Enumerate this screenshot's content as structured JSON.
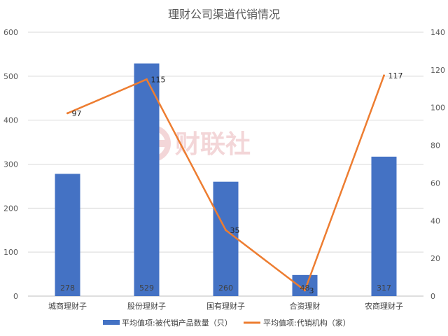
{
  "chart_data": {
    "type": "bar",
    "title": "理财公司渠道代销情况",
    "categories": [
      "城商理财子",
      "股份理财子",
      "国有理财子",
      "合资理财",
      "农商理财子"
    ],
    "series": [
      {
        "name": "平均值项:被代销产品数量（只）",
        "type": "bar",
        "axis": "left",
        "color": "#4472C4",
        "values": [
          278,
          529,
          260,
          48,
          317
        ]
      },
      {
        "name": "平均值项:代销机构（家）",
        "type": "line",
        "axis": "right",
        "color": "#ED7D31",
        "values": [
          97,
          115,
          35,
          3,
          117
        ]
      }
    ],
    "y_left": {
      "range": [
        0,
        600
      ],
      "ticks": [
        "0",
        "100",
        "200",
        "300",
        "400",
        "500",
        "600"
      ]
    },
    "y_right": {
      "range": [
        0,
        140
      ],
      "ticks": [
        "0",
        "20",
        "40",
        "60",
        "80",
        "100",
        "120",
        "140"
      ]
    },
    "grid": true,
    "legend_position": "bottom",
    "data_labels": true
  },
  "watermark": {
    "text": "财联社",
    "icon": "cailianshe-logo-icon"
  }
}
